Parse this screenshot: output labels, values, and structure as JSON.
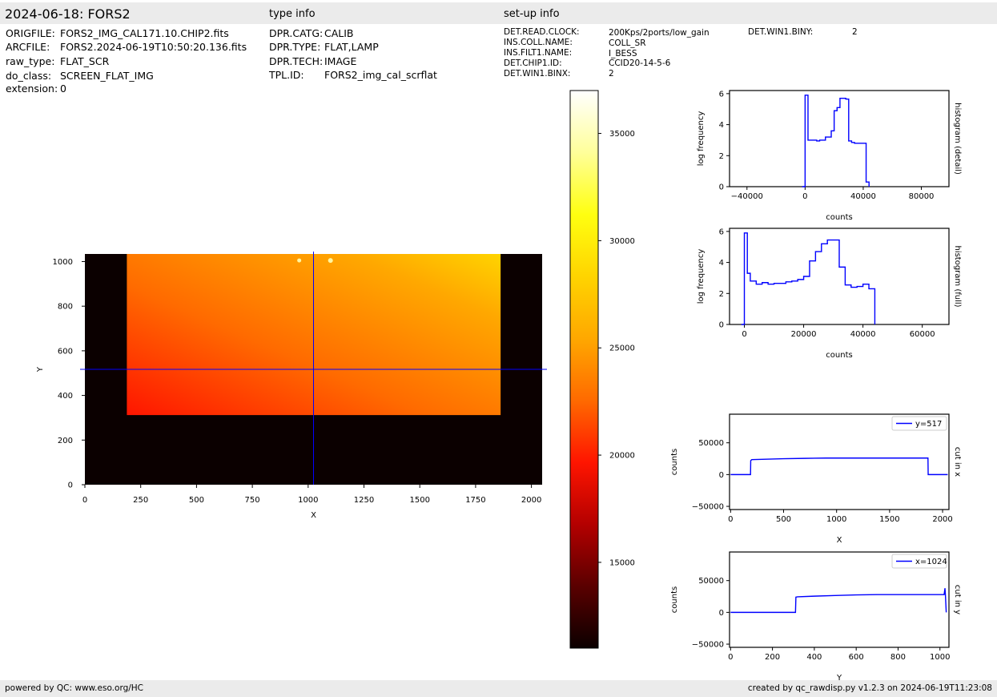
{
  "header": {
    "title": "2024-06-18: FORS2",
    "type_info_heading": "type info",
    "setup_info_heading": "set-up info"
  },
  "file_info": [
    {
      "key": "ORIGFILE:",
      "value": "FORS2_IMG_CAL171.10.CHIP2.fits"
    },
    {
      "key": "ARCFILE:",
      "value": "FORS2.2024-06-19T10:50:20.136.fits"
    },
    {
      "key": "raw_type:",
      "value": "FLAT_SCR"
    },
    {
      "key": "do_class:",
      "value": "SCREEN_FLAT_IMG"
    },
    {
      "key": "extension:",
      "value": "0"
    }
  ],
  "type_info": [
    {
      "key": "DPR.CATG:",
      "value": "CALIB"
    },
    {
      "key": "DPR.TYPE:",
      "value": "FLAT,LAMP"
    },
    {
      "key": "DPR.TECH:",
      "value": "IMAGE"
    },
    {
      "key": "TPL.ID:",
      "value": "FORS2_img_cal_scrflat"
    }
  ],
  "setup_info": [
    {
      "key": "DET.READ.CLOCK:",
      "value": "200Kps/2ports/low_gain"
    },
    {
      "key": "INS.COLL.NAME:",
      "value": "COLL_SR"
    },
    {
      "key": "INS.FILT1.NAME:",
      "value": "I_BESS"
    },
    {
      "key": "DET.CHIP1.ID:",
      "value": "CCID20-14-5-6"
    },
    {
      "key": "DET.WIN1.BINX:",
      "value": "2"
    },
    {
      "key": "DET.WIN1.BINY:",
      "value": "2"
    }
  ],
  "footer": {
    "left": "powered by QC: www.eso.org/HC",
    "right": "created by qc_rawdisp.py v1.2.3 on 2024-06-19T11:23:08"
  },
  "colors": {
    "line": "#0000ff",
    "header_bg": "#ebebeb",
    "colormap": [
      "#0b0000",
      "#5a0000",
      "#b40000",
      "#ff1500",
      "#ff6a00",
      "#ffa800",
      "#ffd400",
      "#ffff10",
      "#ffff9a",
      "#ffffff"
    ]
  },
  "chart_data": [
    {
      "type": "heatmap",
      "xlabel": "X",
      "ylabel": "Y",
      "xlim": [
        0,
        2048
      ],
      "ylim": [
        0,
        1034
      ],
      "xticks": [
        0,
        250,
        500,
        750,
        1000,
        1250,
        1500,
        1750,
        2000
      ],
      "yticks": [
        0,
        200,
        400,
        600,
        800,
        1000
      ],
      "illuminated_region": {
        "x": [
          188,
          1862
        ],
        "y": [
          312,
          1034
        ]
      },
      "cut_lines": {
        "x": 1024,
        "y": 517
      },
      "colorbar": {
        "range": [
          11000,
          37000
        ],
        "ticks": [
          15000,
          20000,
          25000,
          30000,
          35000
        ]
      }
    },
    {
      "type": "line",
      "name": "histogram (detail)",
      "xlabel": "counts",
      "ylabel": "log frequency",
      "side_label": "histogram (detail)",
      "xlim": [
        -52000,
        99000
      ],
      "ylim": [
        0,
        6.2
      ],
      "xticks": [
        -40000,
        0,
        40000,
        80000
      ],
      "xtick_labels": [
        "-40000",
        "0",
        "40000",
        "80000"
      ],
      "yticks": [
        0,
        2,
        4,
        6
      ],
      "x": [
        -2000,
        0,
        2000,
        4000,
        6000,
        8000,
        10000,
        12000,
        14000,
        16000,
        18000,
        20000,
        22000,
        24000,
        26000,
        28000,
        30000,
        32000,
        34000,
        36000,
        38000,
        40000,
        42000,
        44000
      ],
      "y": [
        0,
        5.9,
        3.0,
        3.0,
        3.0,
        2.95,
        3.0,
        3.0,
        3.2,
        3.2,
        3.6,
        4.9,
        5.1,
        5.7,
        5.7,
        5.65,
        2.95,
        2.85,
        2.8,
        2.8,
        2.8,
        2.8,
        0.3,
        0
      ]
    },
    {
      "type": "line",
      "name": "histogram (full)",
      "xlabel": "counts",
      "ylabel": "log frequency",
      "side_label": "histogram (full)",
      "xlim": [
        -5000,
        69000
      ],
      "ylim": [
        0,
        6.2
      ],
      "xticks": [
        0,
        20000,
        40000,
        60000
      ],
      "xtick_labels": [
        "0",
        "20000",
        "40000",
        "60000"
      ],
      "yticks": [
        0,
        2,
        4,
        6
      ],
      "x": [
        -1000,
        0,
        1000,
        2000,
        4000,
        6000,
        8000,
        10000,
        12000,
        14000,
        16000,
        18000,
        20000,
        22000,
        24000,
        26000,
        28000,
        30000,
        32000,
        34000,
        36000,
        38000,
        40000,
        42000,
        44000
      ],
      "y": [
        0,
        5.9,
        3.3,
        2.8,
        2.6,
        2.7,
        2.6,
        2.65,
        2.65,
        2.75,
        2.8,
        2.9,
        3.1,
        4.1,
        4.7,
        5.2,
        5.45,
        5.45,
        3.7,
        2.55,
        2.4,
        2.45,
        2.6,
        2.3,
        0
      ]
    },
    {
      "type": "line",
      "name": "cut in x",
      "side_label": "cut in x",
      "xlabel": "X",
      "ylabel": "counts",
      "xlim": [
        -10,
        2060
      ],
      "ylim": [
        -55000,
        95000
      ],
      "xticks": [
        0,
        500,
        1000,
        1500,
        2000
      ],
      "yticks": [
        -50000,
        0,
        50000
      ],
      "series": [
        {
          "name": "y=517",
          "x": [
            0,
            188,
            190,
            200,
            300,
            400,
            500,
            700,
            900,
            1100,
            1300,
            1500,
            1700,
            1862,
            1864,
            2048
          ],
          "values": [
            0,
            0,
            22000,
            23500,
            24000,
            24500,
            25000,
            25500,
            26000,
            26000,
            26000,
            26000,
            26000,
            26000,
            0,
            0
          ]
        }
      ]
    },
    {
      "type": "line",
      "name": "cut in y",
      "side_label": "cut in y",
      "xlabel": "Y",
      "ylabel": "counts",
      "xlim": [
        -5,
        1043
      ],
      "ylim": [
        -55000,
        95000
      ],
      "xticks": [
        0,
        200,
        400,
        600,
        800,
        1000
      ],
      "yticks": [
        -50000,
        0,
        50000
      ],
      "series": [
        {
          "name": "x=1024",
          "x": [
            0,
            310,
            312,
            320,
            400,
            500,
            600,
            700,
            800,
            900,
            1000,
            1020,
            1024,
            1026,
            1030
          ],
          "values": [
            0,
            0,
            24000,
            24500,
            25500,
            26500,
            27500,
            28000,
            28000,
            28000,
            28000,
            28000,
            38000,
            28000,
            0
          ]
        }
      ]
    }
  ]
}
